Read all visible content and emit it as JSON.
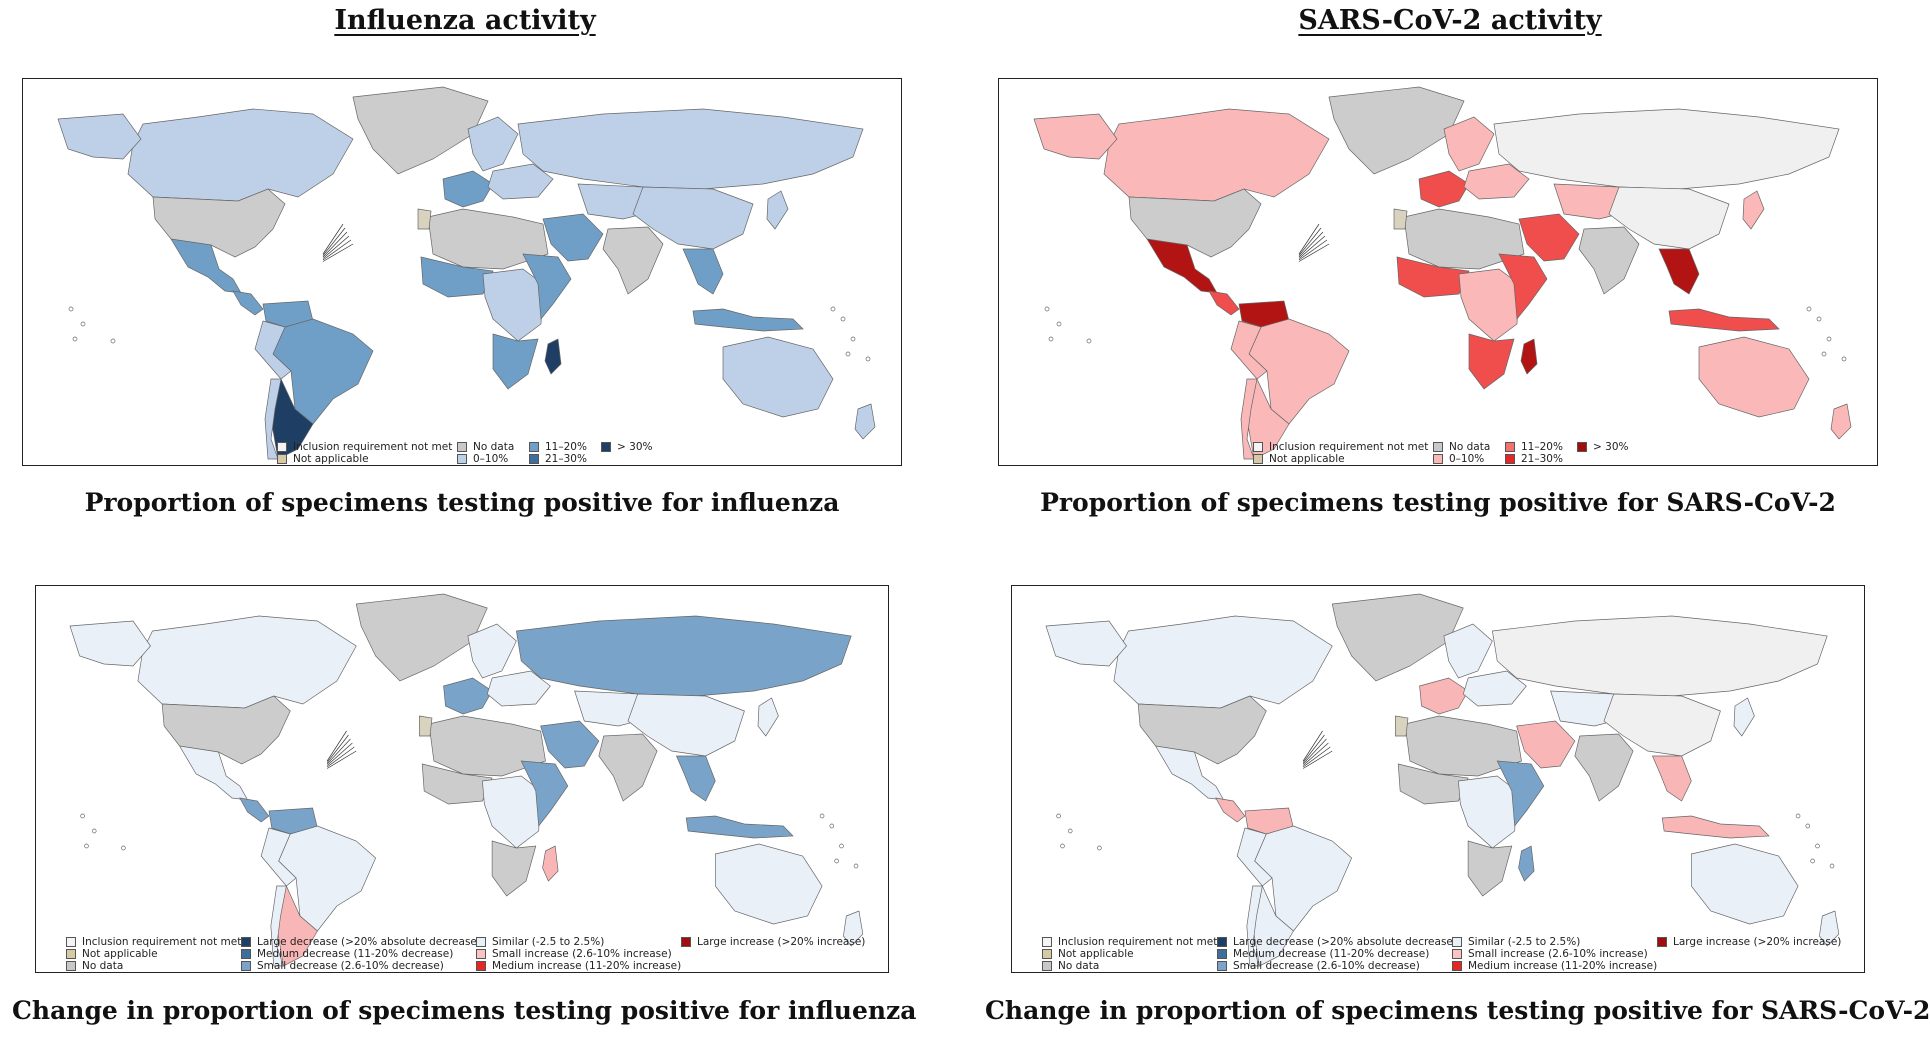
{
  "titles": {
    "left": "Influenza activity",
    "right": "SARS-CoV-2 activity"
  },
  "panels": [
    {
      "id": "flu-positivity",
      "caption": "Proportion of specimens testing positive for influenza",
      "palette": {
        "base": "#bed0e8",
        "mid": "#6f9fc6",
        "dark": "#1f3e63",
        "na": "#d8d2bf",
        "nodata": "#cccccc",
        "inclusion": "#f0f0f0"
      },
      "legend": {
        "columns": [
          [
            {
              "label": "Inclusion requirement not met",
              "color": "#f4f4f4"
            },
            {
              "label": "Not applicable",
              "color": "#d8c9a6"
            }
          ],
          [
            {
              "label": "No data",
              "color": "#c8c8c8"
            },
            {
              "label": "0–10%",
              "color": "#bed0e8"
            }
          ],
          [
            {
              "label": "11–20%",
              "color": "#6f9fc6"
            },
            {
              "label": "21–30%",
              "color": "#3f6e9c"
            }
          ],
          [
            {
              "label": "> 30%",
              "color": "#1f3e63"
            }
          ]
        ]
      }
    },
    {
      "id": "covid-positivity",
      "caption": "Proportion of specimens testing positive for SARS-CoV-2",
      "palette": {
        "base": "#fbb8b8",
        "mid": "#f04d4d",
        "dark": "#b21414",
        "na": "#d8d2bf",
        "nodata": "#cccccc",
        "inclusion": "#f0f0f0"
      },
      "legend": {
        "columns": [
          [
            {
              "label": "Inclusion requirement not met",
              "color": "#f4f4f4"
            },
            {
              "label": "Not applicable",
              "color": "#d8c9a6"
            }
          ],
          [
            {
              "label": "No data",
              "color": "#c8c8c8"
            },
            {
              "label": "0–10%",
              "color": "#fbb8b8"
            }
          ],
          [
            {
              "label": "11–20%",
              "color": "#f27272"
            },
            {
              "label": "21–30%",
              "color": "#e32626"
            }
          ],
          [
            {
              "label": "> 30%",
              "color": "#a10d0d"
            }
          ]
        ]
      }
    },
    {
      "id": "flu-change",
      "caption": "Change in proportion of specimens testing positive for influenza",
      "palette": {
        "base": "#eaf0f8",
        "mid": "#79a3c8",
        "dark": "#f9b6b6",
        "na": "#d8d2bf",
        "nodata": "#cccccc",
        "inclusion": "#f0f0f0"
      },
      "legend": {
        "columns": [
          [
            {
              "label": "Inclusion requirement not met",
              "color": "#f4f4f4"
            },
            {
              "label": "Not applicable",
              "color": "#d8c9a6"
            },
            {
              "label": "No data",
              "color": "#c8c8c8"
            }
          ],
          [
            {
              "label": "Large decrease (>20% absolute decrease)",
              "color": "#1f3e63"
            },
            {
              "label": "Medium decrease (11-20% decrease)",
              "color": "#3f6e9c"
            },
            {
              "label": "Small decrease (2.6-10% decrease)",
              "color": "#79a3c8"
            }
          ],
          [
            {
              "label": "Similar (-2.5 to 2.5%)",
              "color": "#eaf0f8"
            },
            {
              "label": "Small increase (2.6-10% increase)",
              "color": "#f9c4c4"
            },
            {
              "label": "Medium increase (11-20% increase)",
              "color": "#e32626"
            }
          ],
          [
            {
              "label": "Large increase (>20% increase)",
              "color": "#a10d0d"
            }
          ]
        ]
      }
    },
    {
      "id": "covid-change",
      "caption": "Change in proportion of specimens testing positive for SARS-CoV-2",
      "palette": {
        "base": "#eaf0f8",
        "mid": "#f9b6b6",
        "dark": "#79a3c8",
        "na": "#d8d2bf",
        "nodata": "#cccccc",
        "inclusion": "#f0f0f0"
      },
      "legend": {
        "columns": [
          [
            {
              "label": "Inclusion requirement not met",
              "color": "#f4f4f4"
            },
            {
              "label": "Not applicable",
              "color": "#d8c9a6"
            },
            {
              "label": "No data",
              "color": "#c8c8c8"
            }
          ],
          [
            {
              "label": "Large decrease (>20% absolute decrease)",
              "color": "#1f3e63"
            },
            {
              "label": "Medium decrease (11-20% decrease)",
              "color": "#3f6e9c"
            },
            {
              "label": "Small decrease (2.6-10% decrease)",
              "color": "#79a3c8"
            }
          ],
          [
            {
              "label": "Similar (-2.5 to 2.5%)",
              "color": "#eaf0f8"
            },
            {
              "label": "Small increase (2.6-10% increase)",
              "color": "#f9c4c4"
            },
            {
              "label": "Medium increase (11-20% increase)",
              "color": "#e32626"
            }
          ],
          [
            {
              "label": "Large increase (>20% increase)",
              "color": "#a10d0d"
            }
          ]
        ]
      }
    }
  ]
}
